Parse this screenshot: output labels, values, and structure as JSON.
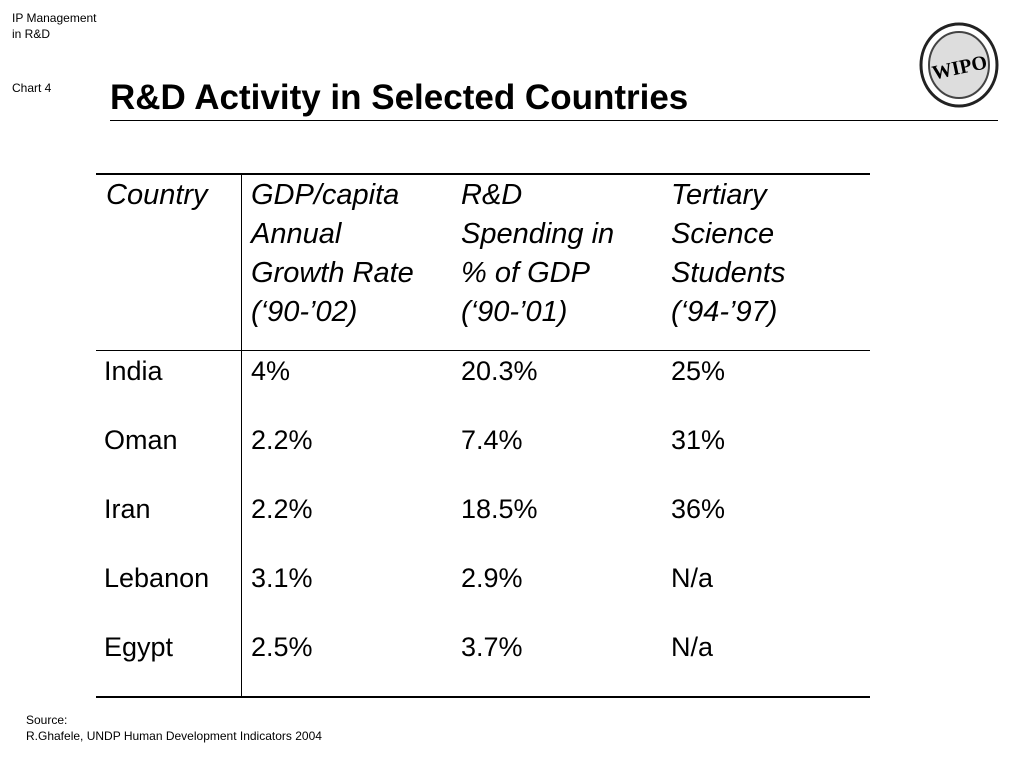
{
  "header": {
    "section": [
      "IP Management",
      "in R&D"
    ],
    "chart_label": "Chart 4",
    "title": "R&D Activity in Selected Countries",
    "logo_text": "WIPO"
  },
  "table": {
    "columns": [
      [
        "Country"
      ],
      [
        "GDP/capita",
        "Annual",
        "Growth Rate",
        "(‘90-’02)"
      ],
      [
        "R&D",
        "Spending in",
        "% of GDP",
        "(‘90-’01)"
      ],
      [
        "Tertiary",
        "Science",
        "Students",
        "(‘94-’97)"
      ]
    ],
    "rows": [
      [
        "India",
        "4%",
        "20.3%",
        "25%"
      ],
      [
        "Oman",
        "2.2%",
        "7.4%",
        "31%"
      ],
      [
        "Iran",
        "2.2%",
        "18.5%",
        "36%"
      ],
      [
        "Lebanon",
        "3.1%",
        "2.9%",
        "N/a"
      ],
      [
        "Egypt",
        "2.5%",
        "3.7%",
        "N/a"
      ]
    ]
  },
  "footer": {
    "source": [
      "Source:",
      "R.Ghafele, UNDP Human Development Indicators 2004"
    ]
  }
}
